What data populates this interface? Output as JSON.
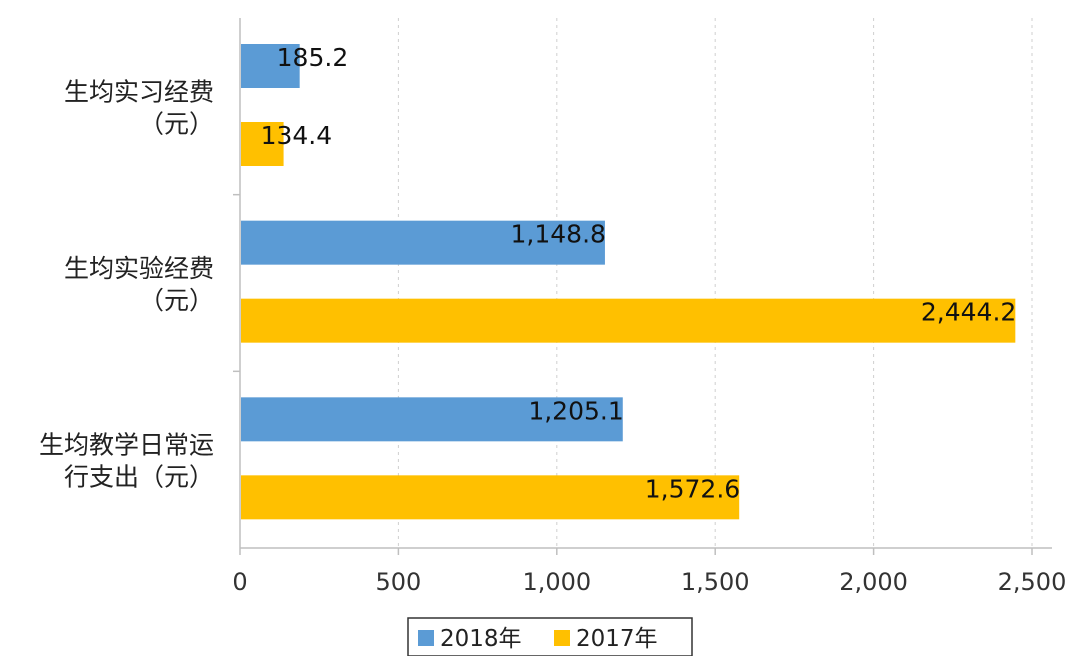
{
  "chart_data": {
    "type": "bar",
    "orientation": "horizontal",
    "categories": [
      [
        "生均实习经费",
        "（元）"
      ],
      [
        "生均实验经费",
        "（元）"
      ],
      [
        "生均教学日常运",
        "行支出（元）"
      ]
    ],
    "series": [
      {
        "name": "2018年",
        "color": "#5b9bd5",
        "values": [
          185.2,
          1148.8,
          1205.1
        ],
        "labels": [
          "185.2",
          "1,148.8",
          "1,205.1"
        ]
      },
      {
        "name": "2017年",
        "color": "#ffc000",
        "values": [
          134.4,
          2444.2,
          1572.6
        ],
        "labels": [
          "134.4",
          "2,444.2",
          "1,572.6"
        ]
      }
    ],
    "xlim": [
      0,
      2500
    ],
    "xticks": [
      0,
      500,
      1000,
      1500,
      2000,
      2500
    ],
    "xtick_labels": [
      "0",
      "500",
      "1,000",
      "1,500",
      "2,000",
      "2,500"
    ],
    "grid": "vertical dashed",
    "legend": "bottom"
  }
}
